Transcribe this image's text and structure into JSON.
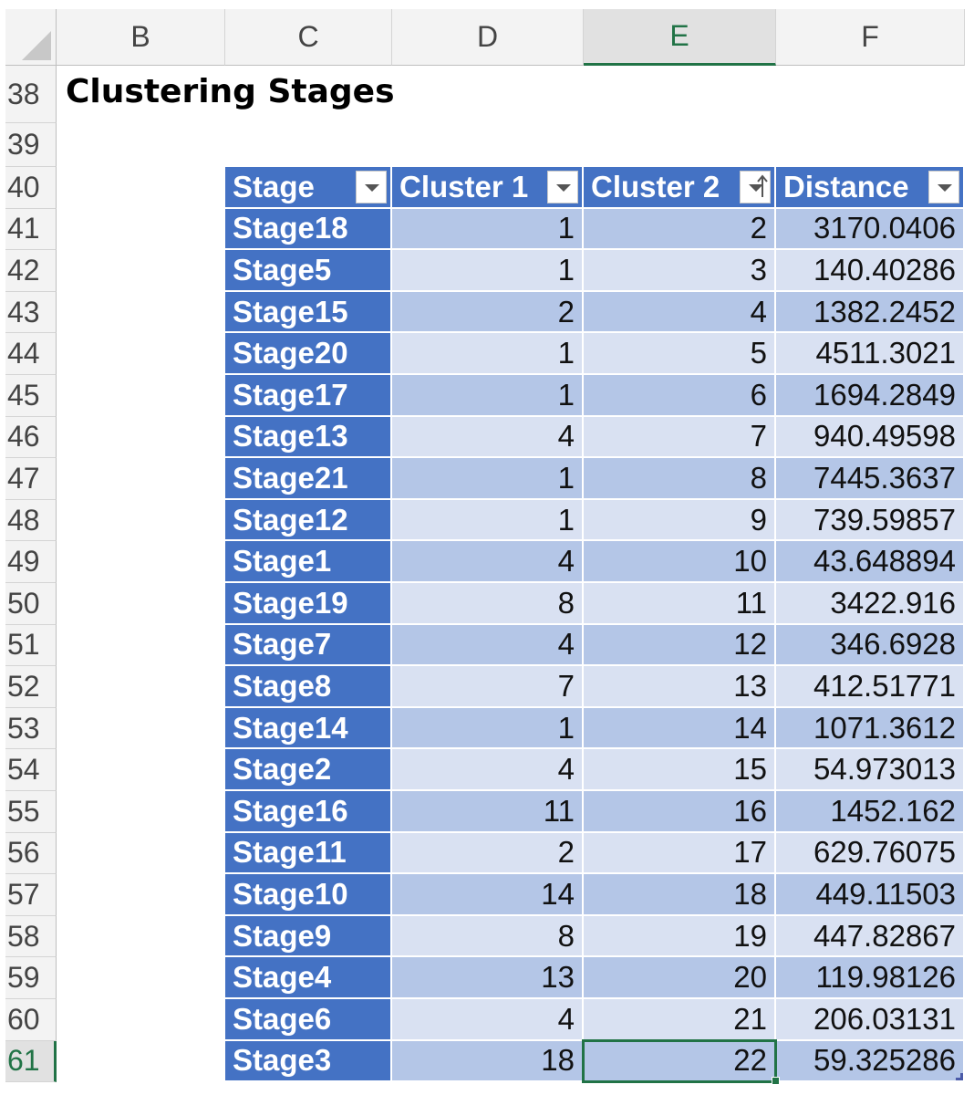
{
  "column_headers": [
    "B",
    "C",
    "D",
    "E",
    "F"
  ],
  "row_numbers": [
    "38",
    "39",
    "40",
    "41",
    "42",
    "43",
    "44",
    "45",
    "46",
    "47",
    "48",
    "49",
    "50",
    "51",
    "52",
    "53",
    "54",
    "55",
    "56",
    "57",
    "58",
    "59",
    "60",
    "61"
  ],
  "title": "Clustering Stages",
  "table": {
    "headers": [
      "Stage",
      "Cluster 1",
      "Cluster 2",
      "Distance"
    ],
    "rows": [
      [
        "Stage18",
        "1",
        "2",
        "3170.0406"
      ],
      [
        "Stage5",
        "1",
        "3",
        "140.40286"
      ],
      [
        "Stage15",
        "2",
        "4",
        "1382.2452"
      ],
      [
        "Stage20",
        "1",
        "5",
        "4511.3021"
      ],
      [
        "Stage17",
        "1",
        "6",
        "1694.2849"
      ],
      [
        "Stage13",
        "4",
        "7",
        "940.49598"
      ],
      [
        "Stage21",
        "1",
        "8",
        "7445.3637"
      ],
      [
        "Stage12",
        "1",
        "9",
        "739.59857"
      ],
      [
        "Stage1",
        "4",
        "10",
        "43.648894"
      ],
      [
        "Stage19",
        "8",
        "11",
        "3422.916"
      ],
      [
        "Stage7",
        "4",
        "12",
        "346.6928"
      ],
      [
        "Stage8",
        "7",
        "13",
        "412.51771"
      ],
      [
        "Stage14",
        "1",
        "14",
        "1071.3612"
      ],
      [
        "Stage2",
        "4",
        "15",
        "54.973013"
      ],
      [
        "Stage16",
        "11",
        "16",
        "1452.162"
      ],
      [
        "Stage11",
        "2",
        "17",
        "629.76075"
      ],
      [
        "Stage10",
        "14",
        "18",
        "449.11503"
      ],
      [
        "Stage9",
        "8",
        "19",
        "447.82867"
      ],
      [
        "Stage4",
        "13",
        "20",
        "119.98126"
      ],
      [
        "Stage6",
        "4",
        "21",
        "206.03131"
      ],
      [
        "Stage3",
        "18",
        "22",
        "59.325286"
      ]
    ]
  }
}
